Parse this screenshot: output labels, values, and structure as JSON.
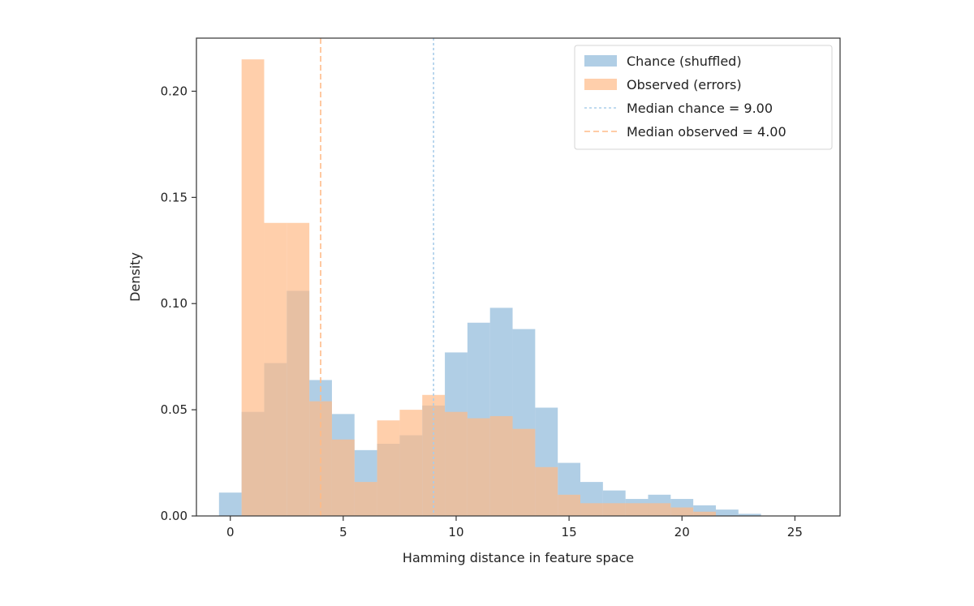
{
  "chart_data": {
    "type": "bar",
    "xlabel": "Hamming distance in feature space",
    "ylabel": "Density",
    "xlim": [
      -1.5,
      27
    ],
    "ylim": [
      0,
      0.225
    ],
    "xticks": [
      0,
      5,
      10,
      15,
      20,
      25
    ],
    "yticks": [
      0.0,
      0.05,
      0.1,
      0.15,
      0.2
    ],
    "ytick_labels": [
      "0.00",
      "0.05",
      "0.10",
      "0.15",
      "0.20"
    ],
    "xtick_labels": [
      "0",
      "5",
      "10",
      "15",
      "20",
      "25"
    ],
    "bin_centers": [
      0,
      1,
      2,
      3,
      4,
      5,
      6,
      7,
      8,
      9,
      10,
      11,
      12,
      13,
      14,
      15,
      16,
      17,
      18,
      19,
      20,
      21,
      22,
      23
    ],
    "bin_width": 1,
    "grid": false,
    "legend_position": "top-right",
    "series": [
      {
        "name": "Chance (shuffled)",
        "kind": "hist",
        "color": "#8fb9da",
        "opacity": 0.7,
        "values": [
          0.011,
          0.049,
          0.072,
          0.106,
          0.064,
          0.048,
          0.031,
          0.034,
          0.038,
          0.052,
          0.077,
          0.091,
          0.098,
          0.088,
          0.051,
          0.025,
          0.016,
          0.012,
          0.008,
          0.01,
          0.008,
          0.005,
          0.003,
          0.001
        ]
      },
      {
        "name": "Observed (errors)",
        "kind": "hist",
        "color": "#ffbb88",
        "opacity": 0.7,
        "values": [
          0.0,
          0.215,
          0.138,
          0.138,
          0.054,
          0.036,
          0.016,
          0.045,
          0.05,
          0.057,
          0.049,
          0.046,
          0.047,
          0.041,
          0.023,
          0.01,
          0.006,
          0.006,
          0.006,
          0.006,
          0.004,
          0.002,
          0.0,
          0.0
        ]
      }
    ],
    "reference_lines": [
      {
        "name": "Median chance = 9.00",
        "x": 9.0,
        "color": "#aacdea",
        "dash": "3,3"
      },
      {
        "name": "Median observed = 4.00",
        "x": 4.0,
        "color": "#ffbb88",
        "dash": "7,4"
      }
    ]
  }
}
